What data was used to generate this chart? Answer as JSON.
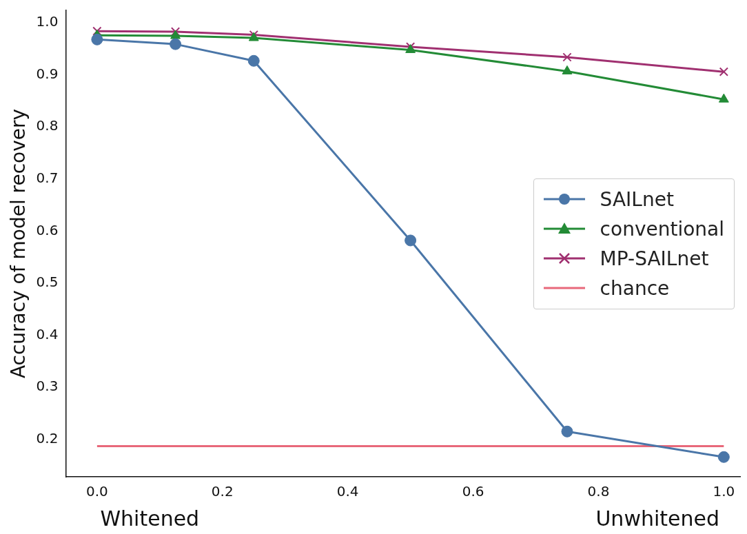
{
  "chart_data": {
    "type": "line",
    "ylabel": "Accuracy of model recovery",
    "xlim": [
      -0.05,
      1.026
    ],
    "xticks": [
      {
        "value": 0,
        "label": "0.0"
      },
      {
        "value": 0.2,
        "label": "0.2"
      },
      {
        "value": 0.4,
        "label": "0.4"
      },
      {
        "value": 0.6,
        "label": "0.6"
      },
      {
        "value": 0.8,
        "label": "0.8"
      },
      {
        "value": 1,
        "label": "1.0"
      }
    ],
    "ylim": [
      0.128,
      1.024
    ],
    "yticks": [
      0.2,
      0.3,
      0.4,
      0.5,
      0.6,
      0.7,
      0.8,
      0.9,
      {
        "value": 1,
        "label": "1.0"
      }
    ],
    "grid": false,
    "legend": "center right",
    "line_style": "solid",
    "annotations": [
      "Whitened",
      "Unwhitened"
    ],
    "series": [
      {
        "name": "SAILnet",
        "color": "#4a76a8",
        "marker": "circle",
        "x": [
          0,
          0.125,
          0.25,
          0.5,
          0.75,
          1
        ],
        "values": [
          0.968,
          0.959,
          0.927,
          0.582,
          0.215,
          0.166
        ]
      },
      {
        "name": "conventional",
        "color": "#238b36",
        "marker": "triangle",
        "x": [
          0,
          0.125,
          0.25,
          0.5,
          0.75,
          1
        ],
        "values": [
          0.976,
          0.975,
          0.971,
          0.948,
          0.907,
          0.853
        ]
      },
      {
        "name": "MP-SAILnet",
        "color": "#a03070",
        "marker": "cross",
        "x": [
          0,
          0.125,
          0.25,
          0.5,
          0.75,
          1
        ],
        "values": [
          0.984,
          0.983,
          0.977,
          0.954,
          0.934,
          0.906
        ]
      },
      {
        "name": "chance",
        "color": "#e8687a",
        "marker": "none",
        "x": [
          0,
          1
        ],
        "values": [
          0.187,
          0.187
        ]
      }
    ]
  }
}
